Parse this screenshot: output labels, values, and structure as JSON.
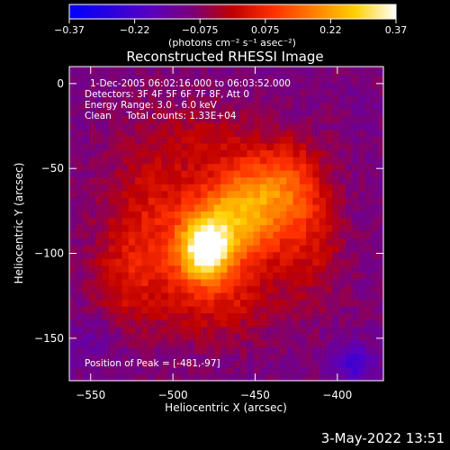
{
  "chart_data": {
    "type": "heatmap",
    "title": "Reconstructed RHESSI Image",
    "xlabel": "Heliocentric X (arcsec)",
    "ylabel": "Heliocentric Y (arcsec)",
    "xlim": [
      -563,
      -372
    ],
    "ylim": [
      -175,
      10
    ],
    "x_ticks": [
      -550,
      -500,
      -450,
      -400
    ],
    "y_ticks": [
      0,
      -50,
      -100,
      -150
    ],
    "x_tick_labels": [
      "−550",
      "−500",
      "−450",
      "−400"
    ],
    "y_tick_labels": [
      "0",
      "−50",
      "−100",
      "−150"
    ],
    "colorbar": {
      "range": [
        -0.37,
        0.37
      ],
      "ticks": [
        "−0.37",
        "−0.22",
        "−0.075",
        "0.075",
        "0.22",
        "0.37"
      ],
      "units_label": "(photons cm⁻² s⁻¹ asec⁻²)",
      "colors": [
        "#0000ff",
        "#2a00e0",
        "#5a00c0",
        "#7a007a",
        "#c00000",
        "#ff3000",
        "#ff8000",
        "#ffd000",
        "#ffffff"
      ]
    },
    "annotations": [
      "1-Dec-2005 06:02:16.000 to 06:03:52.000",
      "Detectors: 3F 4F 5F 6F 7F 8F, Att 0",
      "Energy Range: 3.0 - 6.0 keV",
      "Clean     Total counts: 1.33E+04"
    ],
    "peak_text": "Position of Peak = [-481,-97]",
    "peak_position": [
      -481,
      -97
    ],
    "intensity_model": {
      "sources": [
        {
          "x": -481,
          "y": -97,
          "sx": 11,
          "sy": 13,
          "a": 0.37
        },
        {
          "x": -466,
          "y": -78,
          "sx": 16,
          "sy": 20,
          "a": 0.22
        },
        {
          "x": -445,
          "y": -70,
          "sx": 16,
          "sy": 22,
          "a": 0.2
        },
        {
          "x": -425,
          "y": -58,
          "sx": 14,
          "sy": 18,
          "a": 0.13
        },
        {
          "x": -510,
          "y": -82,
          "sx": 22,
          "sy": 34,
          "a": 0.14
        },
        {
          "x": -470,
          "y": -125,
          "sx": 24,
          "sy": 18,
          "a": 0.12
        },
        {
          "x": -530,
          "y": -118,
          "sx": 14,
          "sy": 22,
          "a": 0.08
        },
        {
          "x": -415,
          "y": -95,
          "sx": 14,
          "sy": 24,
          "a": 0.1
        },
        {
          "x": -480,
          "y": -30,
          "sx": 24,
          "sy": 14,
          "a": 0.06
        },
        {
          "x": -390,
          "y": -165,
          "sx": 10,
          "sy": 8,
          "a": -0.12
        },
        {
          "x": -545,
          "y": -150,
          "sx": 15,
          "sy": 12,
          "a": -0.04
        }
      ],
      "pixel_arcsec": 4
    }
  },
  "footer": {
    "timestamp": "3-May-2022 13:51"
  }
}
